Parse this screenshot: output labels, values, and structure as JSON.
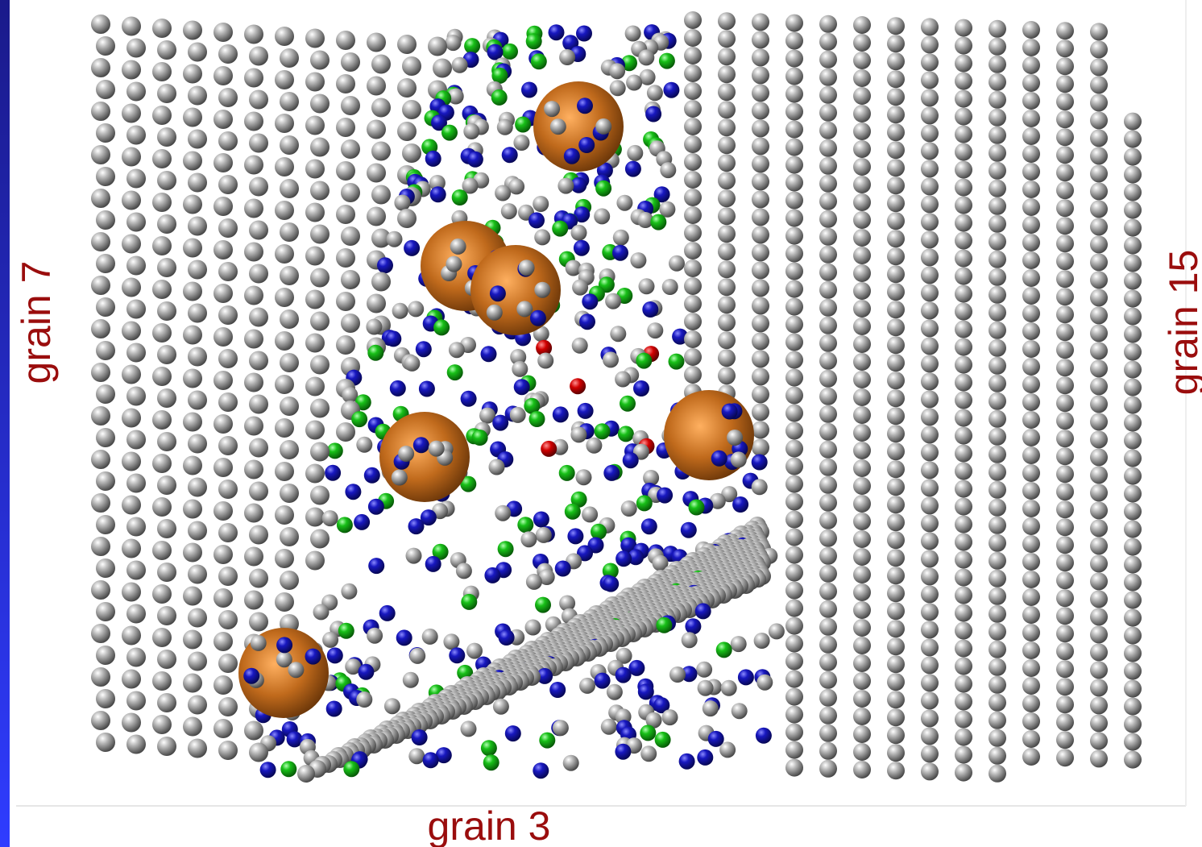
{
  "labels": {
    "left": "grain 7",
    "right": "grain 15",
    "bottom": "grain 3"
  }
}
